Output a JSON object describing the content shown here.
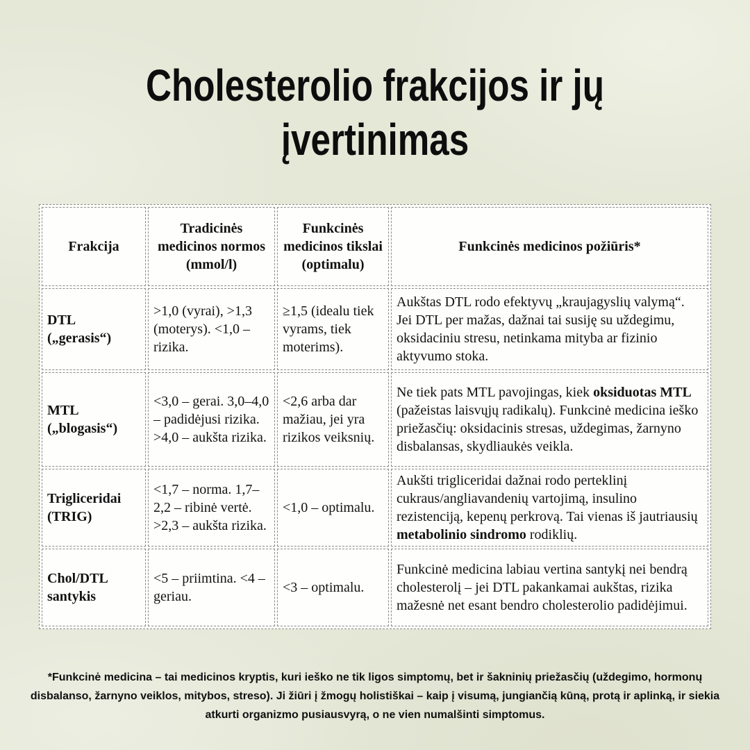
{
  "colors": {
    "background": "#e5e7d7",
    "table_background": "#fdfdfa",
    "text": "#111111",
    "border": "#8a8a8a"
  },
  "header": {
    "title_lines": [
      "Cholesterolio frakcijos ir jų",
      "įvertinimas"
    ]
  },
  "table": {
    "headers": [
      "Frakcija",
      "Tradicinės medicinos normos (mmol/l)",
      "Funkcinės medicinos tikslai (optimalu)",
      "Funkcinės medicinos požiūris*"
    ],
    "rows": [
      {
        "cells": [
          "DTL („gerasis“)",
          ">1,0 (vyrai), >1,3 (moterys). <1,0 – rizika.",
          "≥1,5 (idealu tiek vyrams, tiek moterims).",
          "Aukštas DTL rodo efektyvų „kraujagyslių valymą“. Jei DTL per mažas, dažnai tai susiję su uždegimu, oksidaciniu stresu, netinkama mityba ar fizinio aktyvumo stoka."
        ]
      },
      {
        "cells": [
          "MTL („blogasis“)",
          "<3,0 – gerai. 3,0–4,0 – padidėjusi rizika. >4,0 – aukšta rizika.",
          "<2,6 arba dar mažiau, jei yra rizikos veiksnių.",
          "Ne tiek pats MTL pavojingas, kiek **oksiduotas MTL** (pažeistas laisvųjų radikalų). Funkcinė medicina ieško priežasčių: oksidacinis stresas, uždegimas, žarnyno disbalansas, skydliaukės veikla."
        ]
      },
      {
        "cells": [
          "Trigliceridai (TRIG)",
          "<1,7 – norma. 1,7–2,2 – ribinė vertė. >2,3 – aukšta rizika.",
          "<1,0 – optimalu.",
          "Aukšti trigliceridai dažnai rodo perteklinį cukraus/angliavandenių vartojimą, insulino rezistenciją, kepenų perkrovą. Tai vienas iš jautriausių **metabolinio sindromo** rodiklių."
        ]
      },
      {
        "cells": [
          "Chol/DTL santykis",
          "<5 – priimtina. <4 – geriau.",
          "<3 – optimalu.",
          "Funkcinė medicina labiau vertina santykį nei bendrą cholesterolį – jei DTL pakankamai aukštas, rizika mažesnė net esant bendro cholesterolio padidėjimui."
        ]
      }
    ]
  },
  "footnote": "*Funkcinė medicina – tai medicinos kryptis, kuri ieško ne tik ligos simptomų, bet ir šakninių priežasčių (uždegimo, hormonų disbalanso, žarnyno veiklos, mitybos, streso). Ji žiūri į žmogų holistiškai – kaip į visumą, jungiančią kūną, protą ir aplinką, ir siekia atkurti organizmo pusiausvyrą, o ne vien numalšinti simptomus."
}
